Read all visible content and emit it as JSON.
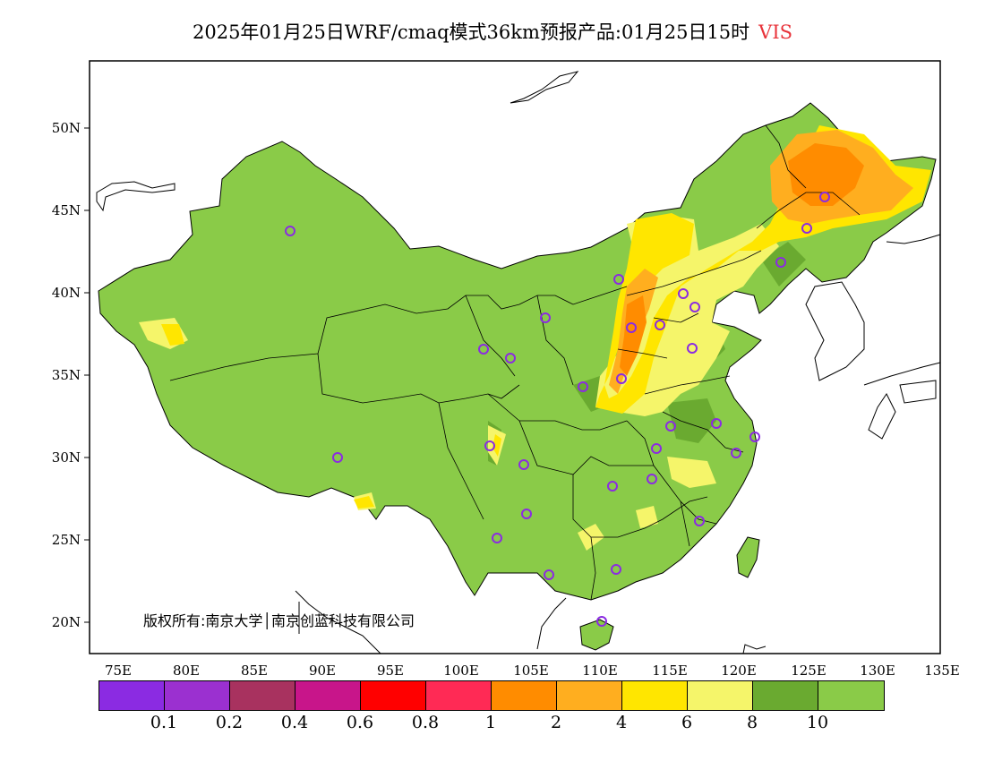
{
  "title": {
    "text": "2025年01月25日WRF/cmaq模式36km预报产品:01月25日15时",
    "variable": "VIS"
  },
  "copyright": "版权所有:南京大学│南京创蓝科技有限公司",
  "axes": {
    "lat_labels": [
      "50N",
      "45N",
      "40N",
      "35N",
      "30N",
      "25N",
      "20N"
    ],
    "lon_labels": [
      "75E",
      "80E",
      "85E",
      "90E",
      "95E",
      "100E",
      "105E",
      "110E",
      "115E",
      "120E",
      "125E",
      "130E",
      "135E"
    ]
  },
  "colorbar": {
    "colors": [
      "#8b2be2",
      "#9b30d0",
      "#a8325f",
      "#c8158a",
      "#ff0000",
      "#ff2a55",
      "#ff8c00",
      "#ffae1f",
      "#ffe600",
      "#f5f56a",
      "#6aaa30",
      "#8acb48"
    ],
    "labels": [
      "0.1",
      "0.2",
      "0.4",
      "0.6",
      "0.8",
      "1",
      "2",
      "4",
      "6",
      "8",
      "10"
    ]
  },
  "map": {
    "background_color": "#8acb48",
    "station_color": "#8b2be2"
  }
}
